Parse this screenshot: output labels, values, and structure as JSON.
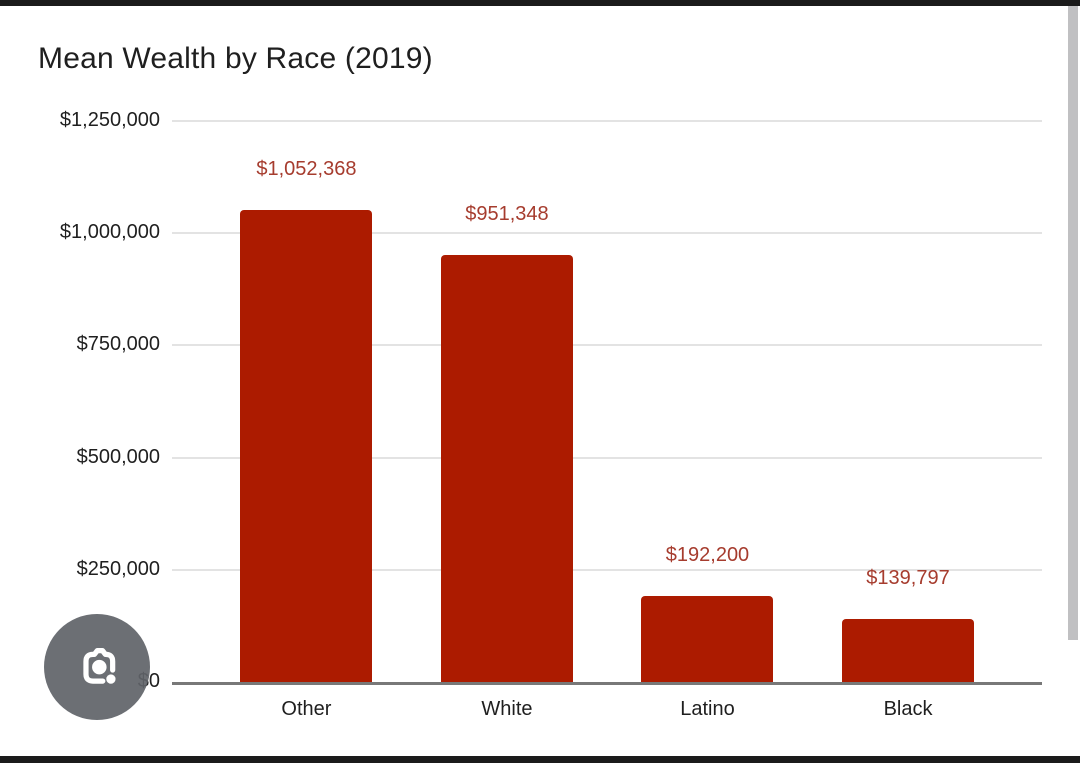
{
  "page": {
    "letterbox_color": "#1b1b1b",
    "background_color": "#ffffff"
  },
  "scrollbar": {
    "color": "#c0c0c2"
  },
  "lens_button": {
    "icon": "camera-lens-icon",
    "background_color": "#5f6368",
    "glyph_color": "#ffffff"
  },
  "chart_data": {
    "type": "bar",
    "title": "Mean Wealth by Race (2019)",
    "categories": [
      "Other",
      "White",
      "Latino",
      "Black"
    ],
    "values": [
      1052368,
      951348,
      192200,
      139797
    ],
    "data_labels": [
      "$1,052,368",
      "$951,348",
      "$192,200",
      "$139,797"
    ],
    "y_ticks": [
      {
        "value": 0,
        "label": "$0"
      },
      {
        "value": 250000,
        "label": "$250,000"
      },
      {
        "value": 500000,
        "label": "$500,000"
      },
      {
        "value": 750000,
        "label": "$750,000"
      },
      {
        "value": 1000000,
        "label": "$1,000,000"
      },
      {
        "value": 1250000,
        "label": "$1,250,000"
      }
    ],
    "ylim": [
      0,
      1250000
    ],
    "xlabel": "",
    "ylabel": "",
    "grid": true,
    "legend": "none",
    "bar_color": "#ac1b00",
    "data_label_color": "#a63c2e",
    "gridline_color": "#e3e3e3",
    "axis_line_color": "#787878",
    "tick_label_color": "#1f1f1f"
  }
}
